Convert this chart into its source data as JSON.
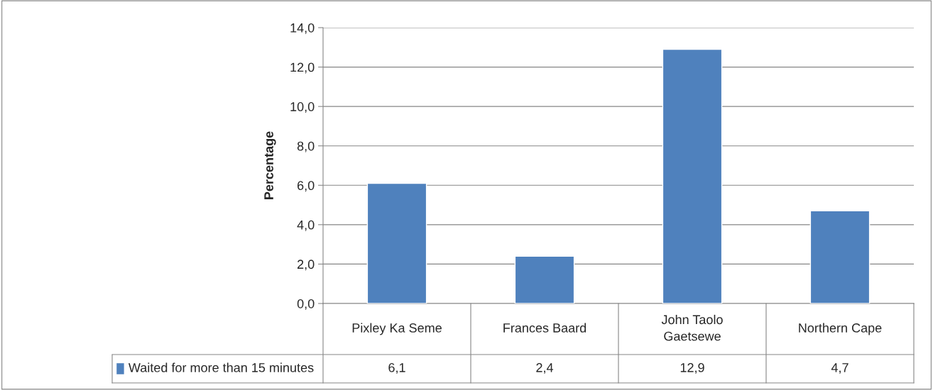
{
  "chart_data": {
    "type": "bar",
    "ylabel": "Percentage",
    "categories": [
      "Pixley Ka Seme",
      "Frances Baard",
      "John Taolo Gaetsewe",
      "Northern Cape"
    ],
    "series": [
      {
        "name": "Waited for more than 15 minutes",
        "color": "#4f81bd",
        "values": [
          6.1,
          2.4,
          12.9,
          4.7
        ],
        "value_labels": [
          "6,1",
          "2,4",
          "12,9",
          "4,7"
        ]
      }
    ],
    "ylim": [
      0,
      14
    ],
    "yticks": [
      {
        "value": 0,
        "label": "0,0"
      },
      {
        "value": 2,
        "label": "2,0"
      },
      {
        "value": 4,
        "label": "4,0"
      },
      {
        "value": 6,
        "label": "6,0"
      },
      {
        "value": 8,
        "label": "8,0"
      },
      {
        "value": 10,
        "label": "10,0"
      },
      {
        "value": 12,
        "label": "12,0"
      },
      {
        "value": 14,
        "label": "14,0"
      }
    ],
    "grid": "y",
    "legend": "bottom left"
  }
}
